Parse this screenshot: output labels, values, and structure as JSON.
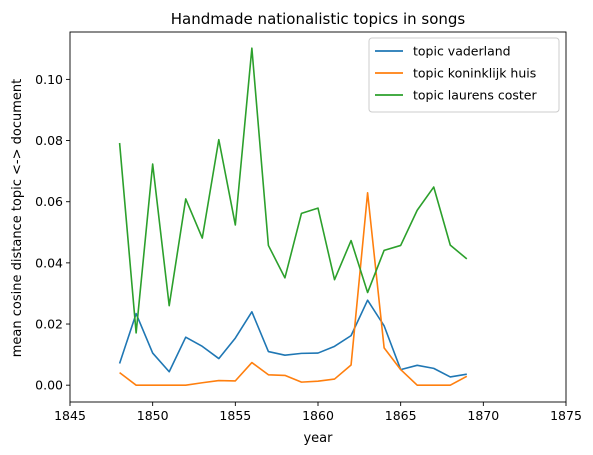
{
  "chart_data": {
    "type": "line",
    "title": "Handmade nationalistic topics in songs",
    "xlabel": "year",
    "ylabel": "mean cosine distance topic <-> document",
    "xlim": [
      1845,
      1875
    ],
    "ylim": [
      -0.0055,
      0.1155
    ],
    "xticks": [
      1845,
      1850,
      1855,
      1860,
      1865,
      1870,
      1875
    ],
    "yticks": [
      0.0,
      0.02,
      0.04,
      0.06,
      0.08,
      0.1
    ],
    "ytick_labels": [
      "0.00",
      "0.02",
      "0.04",
      "0.06",
      "0.08",
      "0.10"
    ],
    "grid": false,
    "legend_position": "top-right",
    "x": [
      1848,
      1849,
      1850,
      1851,
      1852,
      1853,
      1854,
      1855,
      1856,
      1857,
      1858,
      1859,
      1860,
      1861,
      1862,
      1863,
      1864,
      1865,
      1866,
      1867,
      1868,
      1869
    ],
    "series": [
      {
        "name": "topic vaderland",
        "color": "#1f77b4",
        "values": [
          0.0071,
          0.0234,
          0.0105,
          0.0044,
          0.0157,
          0.0127,
          0.0087,
          0.0154,
          0.024,
          0.011,
          0.0098,
          0.0104,
          0.0105,
          0.0127,
          0.0162,
          0.0278,
          0.0194,
          0.0051,
          0.0065,
          0.0055,
          0.0027,
          0.0036
        ]
      },
      {
        "name": "topic koninklijk huis",
        "color": "#ff7f0e",
        "values": [
          0.0041,
          0.0,
          0.0,
          0.0,
          0.0,
          0.0008,
          0.0015,
          0.0014,
          0.0074,
          0.0034,
          0.0032,
          0.001,
          0.0013,
          0.002,
          0.0066,
          0.0629,
          0.0122,
          0.0051,
          0.0,
          0.0,
          0.0,
          0.0029
        ]
      },
      {
        "name": "topic laurens coster",
        "color": "#2ca02c",
        "values": [
          0.0792,
          0.0171,
          0.0723,
          0.026,
          0.0609,
          0.0481,
          0.0803,
          0.0524,
          0.1102,
          0.0457,
          0.0351,
          0.0562,
          0.0579,
          0.0345,
          0.0473,
          0.0303,
          0.0441,
          0.0457,
          0.0572,
          0.0648,
          0.0458,
          0.0413
        ]
      }
    ]
  }
}
